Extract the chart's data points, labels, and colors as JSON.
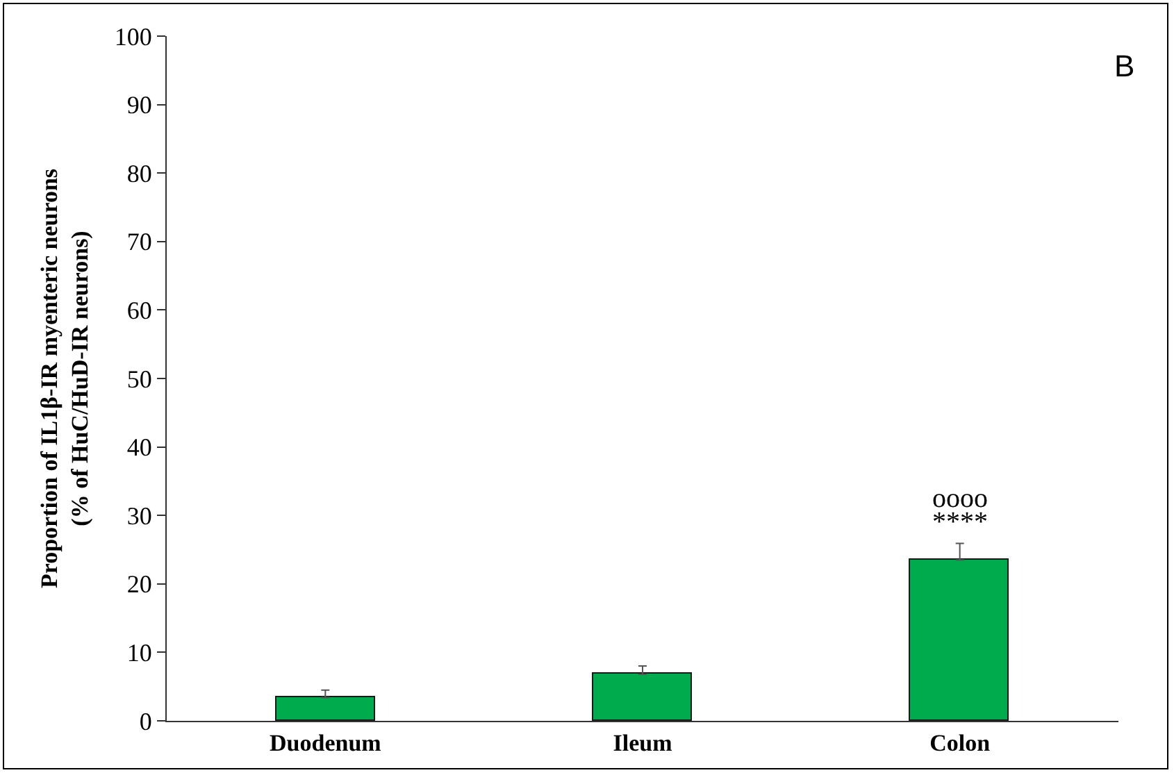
{
  "chart_data": {
    "type": "bar",
    "ylabel": "Proportion of IL1β-IR myenteric neurons\n(% of HuC/HuD-IR neurons)",
    "categories": [
      "Duodenum",
      "Ileum",
      "Colon"
    ],
    "values": [
      3.4,
      6.8,
      23.5
    ],
    "errors": [
      [
        3.4,
        4.5
      ],
      [
        6.8,
        8.0
      ],
      [
        23.5,
        25.9
      ]
    ],
    "color": "#00ab4e",
    "ylim": [
      0,
      100
    ],
    "yticks": [
      0,
      10,
      20,
      30,
      40,
      50,
      60,
      70,
      80,
      90,
      100
    ],
    "grid": false,
    "legend": false,
    "annotations": [
      "****",
      "oooo",
      "B"
    ]
  }
}
